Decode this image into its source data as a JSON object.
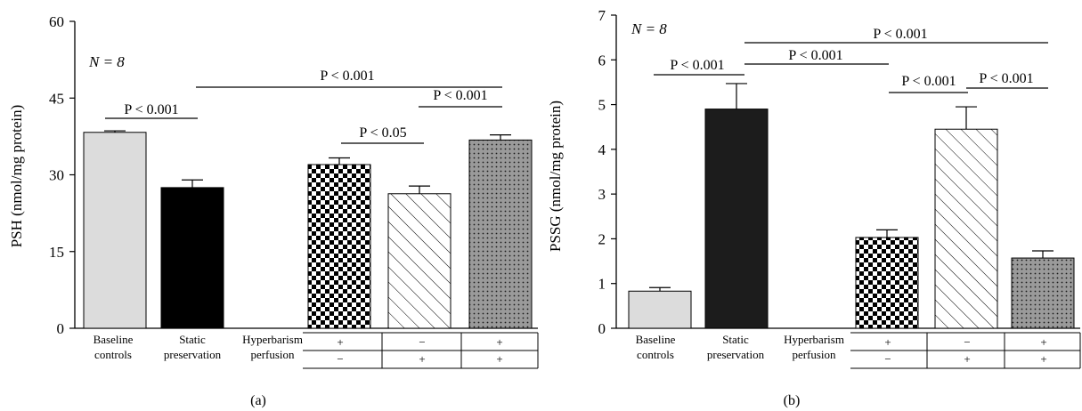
{
  "chart_data": [
    {
      "type": "bar",
      "panel_label": "(a)",
      "ylabel": "PSH (nmol/mg protein)",
      "ylim": [
        0,
        60
      ],
      "yticks": [
        0,
        15,
        30,
        45,
        60
      ],
      "n_label": "N = 8",
      "category_labels": [
        {
          "line1": "Baseline",
          "line2": "controls"
        },
        {
          "line1": "Static",
          "line2": "preservation"
        },
        {
          "line1": "Hyperbarism",
          "line2": "perfusion"
        }
      ],
      "bars": [
        {
          "value": 38.3,
          "error": 0.3,
          "fill": "light-gray"
        },
        {
          "value": 27.5,
          "error": 1.5,
          "fill": "black"
        },
        {
          "value": 32.0,
          "error": 1.3,
          "fill": "checker"
        },
        {
          "value": 26.3,
          "error": 1.5,
          "fill": "diagonal-hatch"
        },
        {
          "value": 36.8,
          "error": 1.0,
          "fill": "dotted"
        }
      ],
      "treatment_table": {
        "hyperbarism": [
          "+",
          "−",
          "+"
        ],
        "perfusion": [
          "−",
          "+",
          "+"
        ]
      },
      "significance": [
        {
          "label": "P < 0.001"
        },
        {
          "label": "P < 0.001"
        },
        {
          "label": "P < 0.05"
        },
        {
          "label": "P < 0.001"
        }
      ]
    },
    {
      "type": "bar",
      "panel_label": "(b)",
      "ylabel": "PSSG (nmol/mg protein)",
      "ylim": [
        0,
        7
      ],
      "yticks": [
        0,
        1,
        2,
        3,
        4,
        5,
        6,
        7
      ],
      "n_label": "N = 8",
      "category_labels": [
        {
          "line1": "Baseline",
          "line2": "controls"
        },
        {
          "line1": "Static",
          "line2": "preservation"
        },
        {
          "line1": "Hyperbarism",
          "line2": "perfusion"
        }
      ],
      "bars": [
        {
          "value": 0.83,
          "error": 0.08,
          "fill": "light-gray"
        },
        {
          "value": 4.9,
          "error": 0.57,
          "fill": "dark"
        },
        {
          "value": 2.03,
          "error": 0.17,
          "fill": "checker"
        },
        {
          "value": 4.45,
          "error": 0.5,
          "fill": "diagonal-hatch"
        },
        {
          "value": 1.57,
          "error": 0.16,
          "fill": "dotted"
        }
      ],
      "treatment_table": {
        "hyperbarism": [
          "+",
          "−",
          "+"
        ],
        "perfusion": [
          "−",
          "+",
          "+"
        ]
      },
      "significance": [
        {
          "label": "P < 0.001"
        },
        {
          "label": "P < 0.001"
        },
        {
          "label": "P < 0.001"
        },
        {
          "label": "P < 0.001"
        },
        {
          "label": "P < 0.001"
        }
      ]
    }
  ]
}
